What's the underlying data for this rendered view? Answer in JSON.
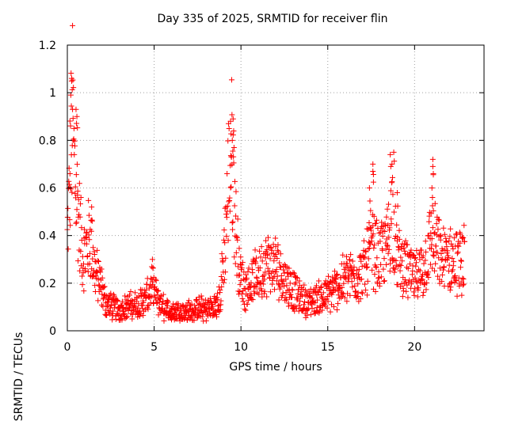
{
  "chart_data": {
    "type": "scatter",
    "title": "Day 335 of 2025, SRMTID for receiver flin",
    "xlabel": "GPS time / hours",
    "ylabel": "SRMTID / TECUs",
    "xlim": [
      0,
      24
    ],
    "ylim": [
      0,
      1.2
    ],
    "xticks": [
      0,
      5,
      10,
      15,
      20
    ],
    "yticks": [
      0,
      0.2,
      0.4,
      0.6,
      0.8,
      1,
      1.2
    ],
    "xtick_labels": [
      "0",
      "5",
      "10",
      "15",
      "20"
    ],
    "ytick_labels": [
      "0",
      "0.2",
      "0.4",
      "0.6",
      "0.8",
      "1",
      "1.2"
    ],
    "grid": true,
    "marker": "+",
    "series": [
      {
        "name": "SRMTID",
        "color": "#ff0000",
        "x_range": [
          0,
          22.9
        ],
        "sample_step_hours": 0.0166667,
        "profile": [
          [
            0.0,
            0.38
          ],
          [
            0.1,
            0.55
          ],
          [
            0.2,
            0.75
          ],
          [
            0.3,
            0.9
          ],
          [
            0.4,
            0.7
          ],
          [
            0.5,
            0.6
          ],
          [
            0.7,
            0.45
          ],
          [
            0.9,
            0.3
          ],
          [
            1.1,
            0.35
          ],
          [
            1.3,
            0.4
          ],
          [
            1.6,
            0.25
          ],
          [
            1.9,
            0.2
          ],
          [
            2.2,
            0.12
          ],
          [
            2.6,
            0.1
          ],
          [
            3.0,
            0.09
          ],
          [
            3.5,
            0.1
          ],
          [
            4.0,
            0.11
          ],
          [
            4.5,
            0.13
          ],
          [
            4.9,
            0.18
          ],
          [
            5.2,
            0.13
          ],
          [
            5.6,
            0.09
          ],
          [
            6.0,
            0.08
          ],
          [
            6.5,
            0.08
          ],
          [
            7.0,
            0.08
          ],
          [
            7.5,
            0.09
          ],
          [
            8.0,
            0.09
          ],
          [
            8.5,
            0.1
          ],
          [
            8.8,
            0.13
          ],
          [
            9.1,
            0.4
          ],
          [
            9.3,
            0.65
          ],
          [
            9.5,
            0.75
          ],
          [
            9.7,
            0.45
          ],
          [
            9.9,
            0.25
          ],
          [
            10.2,
            0.18
          ],
          [
            10.6,
            0.2
          ],
          [
            11.0,
            0.24
          ],
          [
            11.5,
            0.28
          ],
          [
            12.0,
            0.27
          ],
          [
            12.5,
            0.22
          ],
          [
            13.0,
            0.17
          ],
          [
            13.5,
            0.13
          ],
          [
            14.0,
            0.12
          ],
          [
            14.5,
            0.14
          ],
          [
            15.0,
            0.15
          ],
          [
            15.5,
            0.18
          ],
          [
            16.0,
            0.22
          ],
          [
            16.5,
            0.23
          ],
          [
            17.0,
            0.24
          ],
          [
            17.5,
            0.35
          ],
          [
            18.0,
            0.3
          ],
          [
            18.4,
            0.35
          ],
          [
            18.7,
            0.5
          ],
          [
            19.0,
            0.3
          ],
          [
            19.5,
            0.26
          ],
          [
            20.0,
            0.22
          ],
          [
            20.5,
            0.25
          ],
          [
            21.0,
            0.4
          ],
          [
            21.5,
            0.3
          ],
          [
            22.0,
            0.3
          ],
          [
            22.5,
            0.28
          ],
          [
            22.9,
            0.3
          ]
        ],
        "peaks": [
          [
            0.15,
            0.66
          ],
          [
            0.2,
            0.99
          ],
          [
            0.25,
            1.06
          ],
          [
            0.3,
            0.93
          ],
          [
            0.5,
            0.93
          ],
          [
            0.55,
            0.9
          ],
          [
            1.4,
            0.52
          ],
          [
            4.9,
            0.3
          ],
          [
            9.4,
            0.88
          ],
          [
            9.55,
            0.89
          ],
          [
            9.5,
            0.8
          ],
          [
            9.45,
            0.73
          ],
          [
            17.6,
            0.7
          ],
          [
            17.6,
            0.67
          ],
          [
            18.6,
            0.74
          ],
          [
            18.8,
            0.75
          ],
          [
            18.7,
            0.7
          ],
          [
            21.05,
            0.72
          ],
          [
            21.05,
            0.69
          ],
          [
            19.0,
            0.58
          ],
          [
            17.4,
            0.6
          ],
          [
            21.0,
            0.6
          ]
        ]
      }
    ]
  }
}
